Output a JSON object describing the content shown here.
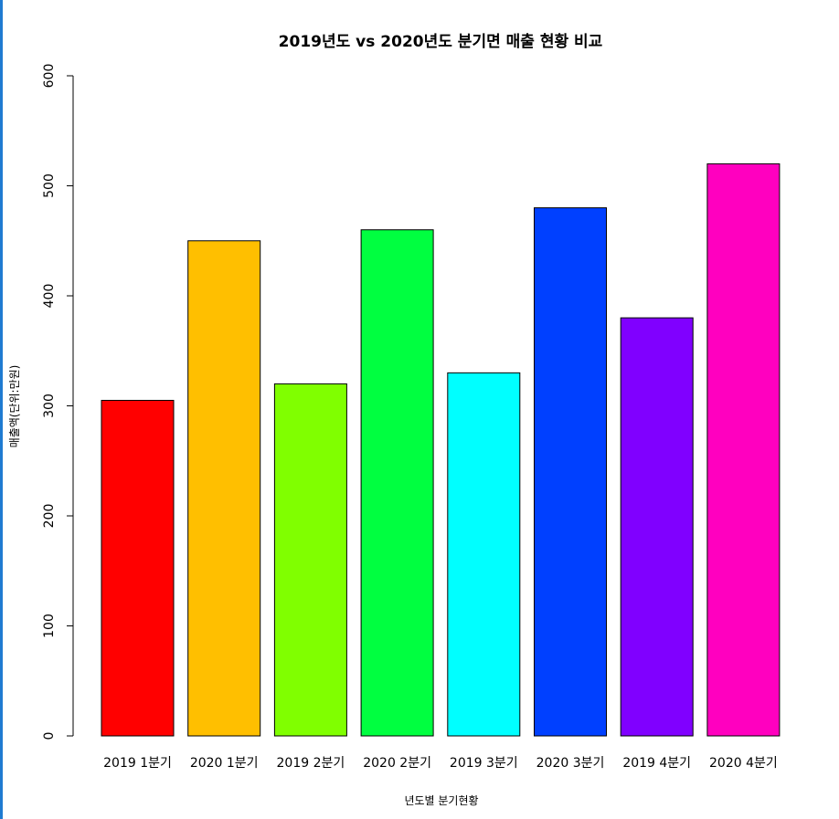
{
  "chart_data": {
    "type": "bar",
    "title": "2019년도 vs 2020년도 분기면 매출 현황 비교",
    "xlabel": "년도별 분기현황",
    "ylabel": "매출액(단위:만원)",
    "categories": [
      "2019 1분기",
      "2020 1분기",
      "2019 2분기",
      "2020 2분기",
      "2019 3분기",
      "2020 3분기",
      "2019 4분기",
      "2020 4분기"
    ],
    "values": [
      305,
      450,
      320,
      460,
      330,
      480,
      380,
      520
    ],
    "colors": [
      "#FF0000",
      "#FFBF00",
      "#80FF00",
      "#00FF40",
      "#00FFFF",
      "#0040FF",
      "#8000FF",
      "#FF00BF"
    ],
    "yticks": [
      "0",
      "100",
      "200",
      "300",
      "400",
      "500",
      "600"
    ],
    "ylim": [
      0,
      600
    ],
    "grid": false,
    "legend": "none"
  }
}
